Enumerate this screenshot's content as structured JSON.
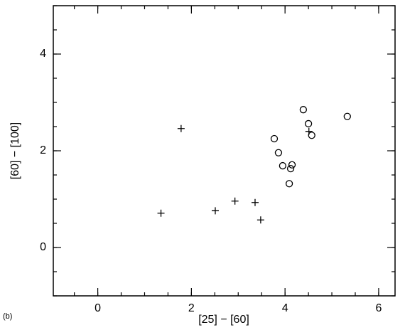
{
  "chart_data": {
    "type": "scatter",
    "panel_label": "(b)",
    "x_label": "[25] − [60]",
    "y_label": "[60] − [100]",
    "xlim": [
      -0.95,
      6.35
    ],
    "ylim": [
      -1,
      5
    ],
    "xticks": [
      0,
      2,
      4,
      6
    ],
    "yticks": [
      0,
      2,
      4
    ],
    "color": "#000000",
    "series": [
      {
        "marker": "plus",
        "x": [
          1.35,
          1.78,
          2.51,
          2.93,
          3.36,
          3.48,
          4.51
        ],
        "y": [
          0.71,
          2.46,
          0.76,
          0.96,
          0.93,
          0.57,
          2.4
        ]
      },
      {
        "marker": "circle",
        "x": [
          3.77,
          3.86,
          3.95,
          4.15,
          4.12,
          4.09,
          4.39,
          4.5,
          4.57,
          5.33
        ],
        "y": [
          2.25,
          1.96,
          1.69,
          1.71,
          1.63,
          1.32,
          2.85,
          2.56,
          2.32,
          2.71
        ]
      }
    ]
  }
}
